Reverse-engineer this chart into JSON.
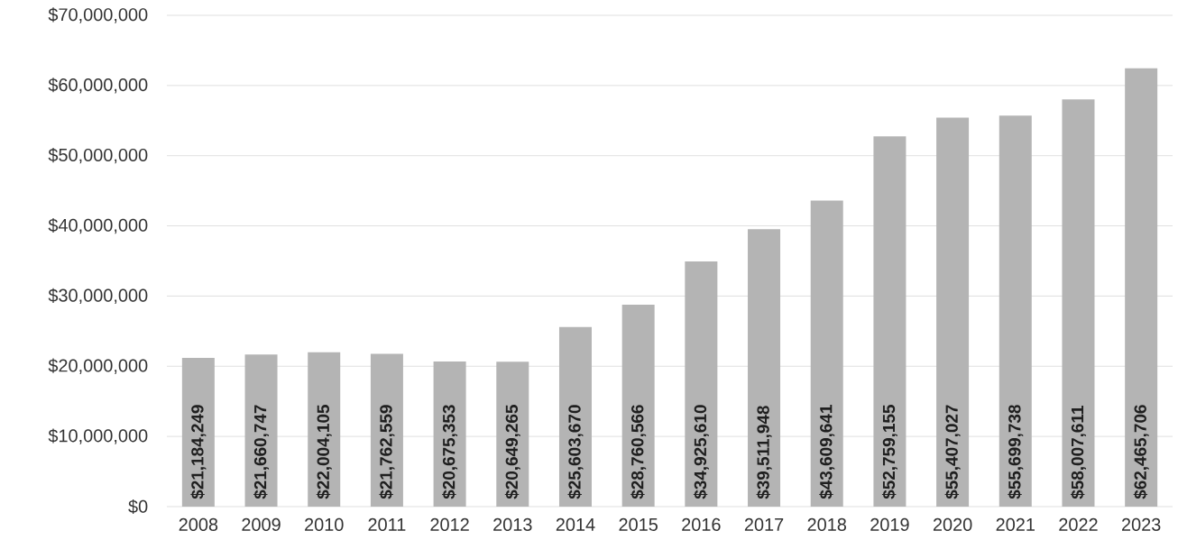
{
  "chart_data": {
    "type": "bar",
    "categories": [
      "2008",
      "2009",
      "2010",
      "2011",
      "2012",
      "2013",
      "2014",
      "2015",
      "2016",
      "2017",
      "2018",
      "2019",
      "2020",
      "2021",
      "2022",
      "2023"
    ],
    "values": [
      21184249,
      21660747,
      22004105,
      21762559,
      20675353,
      20649265,
      25603670,
      28760566,
      34925610,
      39511948,
      43609641,
      52759155,
      55407027,
      55699738,
      58007611,
      62465706
    ],
    "value_labels": [
      "$21,184,249",
      "$21,660,747",
      "$22,004,105",
      "$21,762,559",
      "$20,675,353",
      "$20,649,265",
      "$25,603,670",
      "$28,760,566",
      "$34,925,610",
      "$39,511,948",
      "$43,609,641",
      "$52,759,155",
      "$55,407,027",
      "$55,699,738",
      "$58,007,611",
      "$62,465,706"
    ],
    "color": "#b4b4b4",
    "ylim": [
      0,
      70000000
    ],
    "yticks": [
      {
        "value": 0,
        "label": "$0"
      },
      {
        "value": 10000000,
        "label": "$10,000,000"
      },
      {
        "value": 20000000,
        "label": "$20,000,000"
      },
      {
        "value": 30000000,
        "label": "$30,000,000"
      },
      {
        "value": 40000000,
        "label": "$40,000,000"
      },
      {
        "value": 50000000,
        "label": "$50,000,000"
      },
      {
        "value": 60000000,
        "label": "$60,000,000"
      },
      {
        "value": 70000000,
        "label": "$70,000,000"
      }
    ],
    "grid": "y"
  }
}
